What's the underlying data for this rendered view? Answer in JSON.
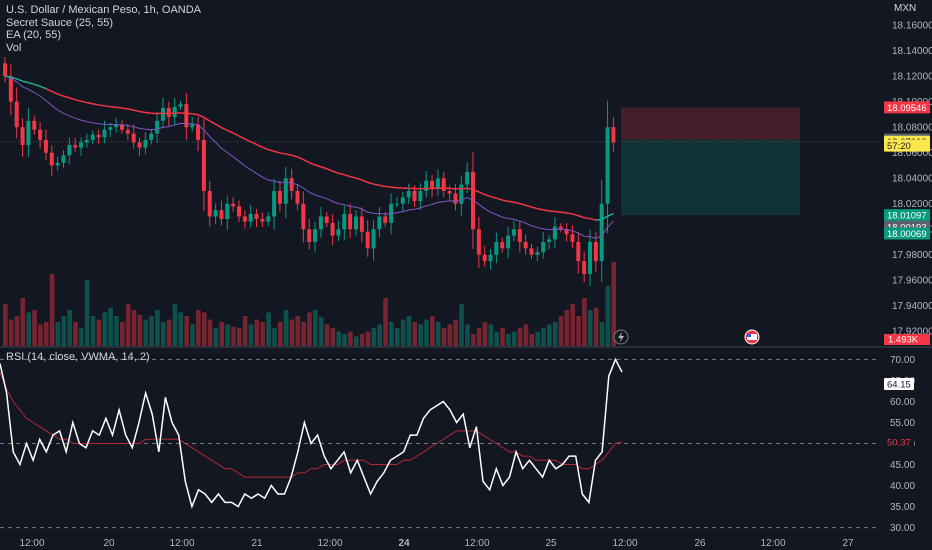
{
  "legend": {
    "symbol": "U.S. Dollar / Mexican Peso, 1h, OANDA",
    "ind1": "Secret Sauce (25, 55)",
    "ind2": "EA (20, 55)",
    "ind3": "Vol"
  },
  "rsi_legend": "RSI (14, close, VWMA, 14, 2)",
  "currency": "MXN",
  "volume_badge": "1.493K",
  "price_badges": [
    {
      "text": "18.09546",
      "price": 18.0955,
      "bg": "#f23645",
      "fg": "#ffffff"
    },
    {
      "text": "18.07026",
      "price": 18.0703,
      "bg": "#5d606b",
      "fg": "#ffffff"
    },
    {
      "text": "18.07010",
      "price": 18.0686,
      "bg": "#fbe64e",
      "fg": "#131722"
    },
    {
      "text": "57:20",
      "price": 18.0655,
      "bg": "#fbe64e",
      "fg": "#131722"
    },
    {
      "text": "18.01097",
      "price": 18.011,
      "bg": "#089981",
      "fg": "#ffffff"
    },
    {
      "text": "18.00193",
      "price": 18.0019,
      "bg": "#5d606b",
      "fg": "#ffffff"
    },
    {
      "text": "18.00069",
      "price": 17.9966,
      "bg": "#089981",
      "fg": "#ffffff"
    }
  ],
  "rsi_badges": [
    {
      "text": "64.15",
      "value": 64.15,
      "bg": "#ffffff",
      "fg": "#131722"
    },
    {
      "text": "50.37",
      "value": 50.37,
      "bg": "#131722",
      "fg": "#f23645"
    }
  ],
  "colors": {
    "up": "#089981",
    "down": "#f23645",
    "bg": "#131722",
    "grid": "#2a2e39",
    "ema_red": "#f23645",
    "ema_green": "#22ab94",
    "ema_purple": "#7e57c2",
    "rsi_line": "#ffffff",
    "rsi_ma": "#b22833"
  },
  "icons": [
    "lightning-icon",
    "us-flag-icon"
  ],
  "chart_data": {
    "type": "candlestick",
    "title": "U.S. Dollar / Mexican Peso, 1h, OANDA",
    "price_axis": {
      "min": 17.91,
      "max": 18.175,
      "ticks": [
        "18.16000",
        "18.14000",
        "18.12000",
        "18.10000",
        "18.08000",
        "18.06000",
        "18.04000",
        "18.02000",
        "18.00000",
        "17.98000",
        "17.96000",
        "17.94000",
        "17.92000"
      ]
    },
    "x_axis_labels": [
      "12:00",
      "20",
      "12:00",
      "21",
      "12:00",
      "24",
      "12:00",
      "25",
      "12:00",
      "26",
      "12:00",
      "27"
    ],
    "candle_seeds": [
      18.12,
      18.1,
      18.08,
      18.066,
      18.085,
      18.078,
      18.07,
      18.06,
      18.05,
      18.052,
      18.058,
      18.066,
      18.064,
      18.068,
      18.07,
      18.074,
      18.072,
      18.078,
      18.08,
      18.082,
      18.078,
      18.075,
      18.068,
      18.064,
      18.07,
      18.075,
      18.085,
      18.095,
      18.088,
      18.096,
      18.098,
      18.08,
      18.082,
      18.07,
      18.03,
      18.01,
      18.015,
      18.008,
      18.02,
      18.018,
      18.01,
      18.006,
      18.012,
      18.008,
      18.006,
      18.01,
      18.03,
      18.02,
      18.04,
      18.03,
      18.02,
      18.0,
      17.99,
      18.0,
      18.01,
      18.005,
      17.995,
      18.0,
      18.012,
      18.0,
      18.01,
      17.998,
      17.985,
      18.0,
      18.01,
      18.005,
      18.02,
      18.02,
      18.025,
      18.03,
      18.022,
      18.03,
      18.038,
      18.032,
      18.04,
      18.03,
      18.028,
      18.02,
      18.035,
      18.045,
      18.0,
      17.98,
      17.975,
      17.98,
      17.99,
      17.985,
      17.995,
      18.0,
      17.99,
      17.985,
      17.98,
      17.982,
      17.99,
      17.992,
      18.002,
      18.0,
      17.996,
      17.99,
      17.975,
      17.965,
      17.99,
      17.975,
      18.02,
      18.08,
      18.068
    ],
    "volume_seeds": [
      0.35,
      0.22,
      0.25,
      0.4,
      0.28,
      0.3,
      0.18,
      0.2,
      0.6,
      0.2,
      0.25,
      0.3,
      0.2,
      0.15,
      0.55,
      0.25,
      0.22,
      0.28,
      0.32,
      0.25,
      0.2,
      0.35,
      0.3,
      0.26,
      0.22,
      0.25,
      0.3,
      0.2,
      0.22,
      0.35,
      0.28,
      0.25,
      0.18,
      0.3,
      0.28,
      0.22,
      0.15,
      0.2,
      0.18,
      0.16,
      0.15,
      0.25,
      0.18,
      0.22,
      0.2,
      0.28,
      0.15,
      0.2,
      0.3,
      0.22,
      0.25,
      0.2,
      0.28,
      0.3,
      0.24,
      0.18,
      0.15,
      0.12,
      0.1,
      0.12,
      0.08,
      0.1,
      0.12,
      0.15,
      0.18,
      0.4,
      0.2,
      0.15,
      0.22,
      0.25,
      0.2,
      0.18,
      0.22,
      0.25,
      0.2,
      0.15,
      0.18,
      0.22,
      0.35,
      0.18,
      0.1,
      0.15,
      0.2,
      0.18,
      0.12,
      0.15,
      0.1,
      0.12,
      0.15,
      0.18,
      0.1,
      0.12,
      0.15,
      0.18,
      0.2,
      0.25,
      0.3,
      0.35,
      0.25,
      0.4,
      0.3,
      0.32,
      0.2,
      0.5,
      0.7
    ],
    "rsi": {
      "levels": [
        70,
        50,
        30
      ],
      "ticks": [
        "70.00",
        "65.00",
        "60.00",
        "55.00",
        "50.00",
        "45.00",
        "40.00",
        "35.00",
        "30.00"
      ],
      "range": [
        28,
        72
      ],
      "rsi_seeds": [
        69,
        62,
        48,
        45,
        50,
        46,
        51,
        48,
        52,
        53,
        48,
        55,
        50,
        49,
        53,
        52,
        56,
        52,
        58,
        52,
        49,
        55,
        62,
        57,
        48,
        61,
        55,
        52,
        41,
        35,
        39,
        38,
        36,
        38,
        36,
        36,
        35,
        38,
        37,
        38,
        37,
        40,
        38,
        38,
        42,
        48,
        55,
        50,
        52,
        47,
        44,
        46,
        48,
        43,
        46,
        42,
        38,
        41,
        43,
        46,
        47,
        48,
        52,
        52,
        56,
        58,
        59,
        60,
        58,
        55,
        57,
        49,
        54,
        41,
        39,
        44,
        40,
        42,
        48,
        44,
        46,
        44,
        42,
        46,
        44,
        45,
        47,
        47,
        38,
        36,
        46,
        48,
        66,
        70,
        67
      ],
      "ma_seeds": [
        67,
        63,
        60,
        58,
        56,
        55,
        54,
        53,
        52,
        51,
        51,
        50,
        50,
        50,
        50,
        50,
        50,
        50,
        50,
        50,
        50,
        50,
        51,
        51,
        51,
        51,
        51,
        51,
        50,
        49,
        48,
        47,
        46,
        45,
        44,
        44,
        43,
        42,
        42,
        42,
        42,
        42,
        42,
        42,
        42,
        43,
        43,
        44,
        44,
        45,
        45,
        45,
        46,
        46,
        46,
        46,
        45,
        45,
        45,
        45,
        45,
        46,
        46,
        47,
        48,
        49,
        50,
        51,
        52,
        53,
        53,
        53,
        53,
        52,
        51,
        50,
        49,
        48,
        48,
        47,
        47,
        46,
        46,
        46,
        46,
        45,
        45,
        45,
        44,
        44,
        45,
        46,
        48,
        50,
        50.4
      ]
    }
  }
}
